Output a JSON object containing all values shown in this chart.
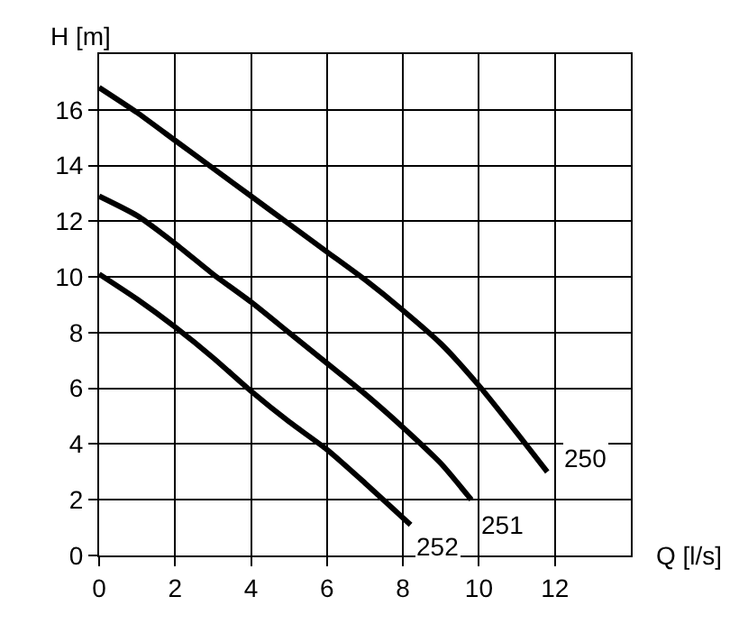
{
  "chart_data": {
    "type": "line",
    "xlabel": "Q [l/s]",
    "ylabel": "H [m]",
    "xlim": [
      0,
      14
    ],
    "xticks": [
      0,
      2,
      4,
      6,
      8,
      10,
      12
    ],
    "ylim": [
      0,
      18
    ],
    "yticks": [
      0,
      2,
      4,
      6,
      8,
      10,
      12,
      14,
      16
    ],
    "grid": true,
    "legend": false,
    "marker": "none",
    "line_style": "solid",
    "series": [
      {
        "name": "250",
        "color": "#000000",
        "x": [
          0,
          1,
          2,
          3,
          4,
          5,
          6,
          7,
          8,
          9,
          10,
          11,
          11.8
        ],
        "values": [
          16.8,
          15.9,
          14.9,
          13.9,
          12.9,
          11.9,
          10.9,
          9.9,
          8.8,
          7.6,
          6.1,
          4.4,
          3.0
        ]
      },
      {
        "name": "251",
        "color": "#000000",
        "x": [
          0,
          1,
          2,
          3,
          4,
          5,
          6,
          7,
          8,
          9,
          9.8
        ],
        "values": [
          12.9,
          12.2,
          11.2,
          10.1,
          9.1,
          8.0,
          6.9,
          5.8,
          4.6,
          3.3,
          2.0
        ]
      },
      {
        "name": "252",
        "color": "#000000",
        "x": [
          0,
          1,
          2,
          3,
          4,
          5,
          6,
          7,
          8.2
        ],
        "values": [
          10.1,
          9.2,
          8.2,
          7.1,
          5.9,
          4.8,
          3.8,
          2.6,
          1.1
        ]
      }
    ]
  }
}
